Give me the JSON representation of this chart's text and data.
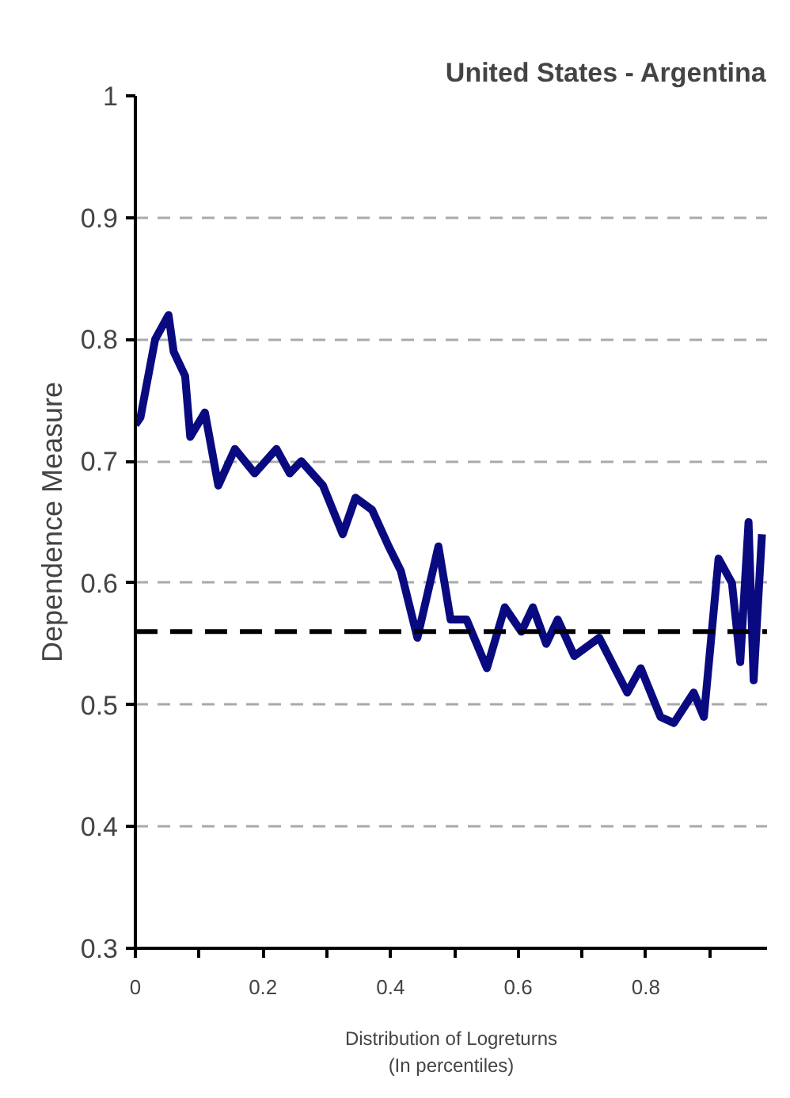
{
  "chart_data": {
    "type": "line",
    "title": "United States - Argentina",
    "xlabel": "Distribution of Logreturns\n(In percentiles)",
    "ylabel": "Dependence Measure",
    "x": [
      0,
      0.008,
      0.031,
      0.052,
      0.06,
      0.078,
      0.086,
      0.109,
      0.13,
      0.156,
      0.187,
      0.221,
      0.242,
      0.26,
      0.294,
      0.325,
      0.345,
      0.371,
      0.397,
      0.416,
      0.442,
      0.475,
      0.494,
      0.519,
      0.551,
      0.579,
      0.605,
      0.623,
      0.644,
      0.662,
      0.688,
      0.727,
      0.771,
      0.792,
      0.823,
      0.844,
      0.875,
      0.891,
      0.914,
      0.935,
      0.948,
      0.961,
      0.969,
      0.982
    ],
    "series": [
      {
        "color": "#0a0a80",
        "values": [
          0.73,
          0.736,
          0.8,
          0.82,
          0.79,
          0.77,
          0.72,
          0.74,
          0.68,
          0.71,
          0.69,
          0.71,
          0.69,
          0.7,
          0.68,
          0.64,
          0.67,
          0.66,
          0.63,
          0.61,
          0.555,
          0.63,
          0.57,
          0.57,
          0.53,
          0.58,
          0.56,
          0.58,
          0.55,
          0.57,
          0.54,
          0.555,
          0.51,
          0.53,
          0.49,
          0.485,
          0.51,
          0.49,
          0.62,
          0.6,
          0.535,
          0.65,
          0.52,
          0.64
        ]
      }
    ],
    "xlim": [
      0,
      0.99
    ],
    "ylim": [
      0.3,
      1
    ],
    "xticks": [
      0,
      {
        "value": 0.1,
        "label": null
      },
      0.2,
      {
        "value": 0.3,
        "label": null
      },
      0.4,
      {
        "value": 0.5,
        "label": null
      },
      0.6,
      {
        "value": 0.7,
        "label": null
      },
      0.8,
      {
        "value": 0.9,
        "label": null
      }
    ],
    "yticks": [
      0.3,
      0.4,
      0.5,
      0.6,
      0.7,
      0.8,
      0.9,
      1
    ],
    "ref_lines": [
      {
        "axis": "y",
        "value": 0.56,
        "color": "#000000",
        "line_style": "dashed"
      }
    ],
    "grid": "y",
    "line_style": "solid",
    "marker": "none"
  }
}
